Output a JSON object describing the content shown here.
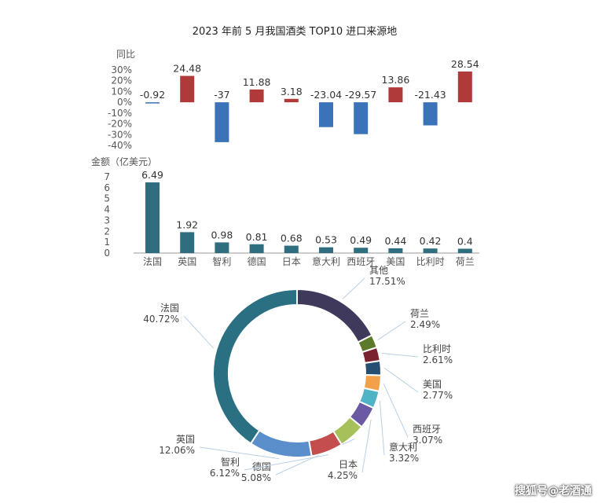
{
  "watermark": "搜狐号@老酒通",
  "chart_data": [
    {
      "type": "bar",
      "title": "2023 年前 5 月我国酒类 TOP10 进口来源地",
      "ylabel": "同比",
      "ylim": [
        -40,
        30
      ],
      "yticks": [
        "30%",
        "20%",
        "10%",
        "0%",
        "-10%",
        "-20%",
        "-30%",
        "-40%"
      ],
      "categories": [
        "法国",
        "英国",
        "智利",
        "德国",
        "日本",
        "意大利",
        "西班牙",
        "美国",
        "比利时",
        "荷兰"
      ],
      "values": [
        -0.92,
        24.48,
        -37,
        11.88,
        3.18,
        -23.04,
        -29.57,
        13.86,
        -21.43,
        28.54
      ],
      "value_labels": [
        "-0.92",
        "24.48",
        "-37",
        "11.88",
        "3.18",
        "-23.04",
        "-29.57",
        "13.86",
        "-21.43",
        "28.54"
      ],
      "colors": {
        "positive": "#b03a3a",
        "negative": "#3b73b9"
      }
    },
    {
      "type": "bar",
      "ylabel": "金额（亿美元）",
      "ylim": [
        0,
        7
      ],
      "yticks": [
        "7",
        "6",
        "5",
        "4",
        "3",
        "2",
        "1",
        "0"
      ],
      "categories": [
        "法国",
        "英国",
        "智利",
        "德国",
        "日本",
        "意大利",
        "西班牙",
        "美国",
        "比利时",
        "荷兰"
      ],
      "values": [
        6.49,
        1.92,
        0.98,
        0.81,
        0.68,
        0.53,
        0.49,
        0.44,
        0.42,
        0.4
      ],
      "value_labels": [
        "6.49",
        "1.92",
        "0.98",
        "0.81",
        "0.68",
        "0.53",
        "0.49",
        "0.44",
        "0.42",
        "0.4"
      ],
      "colors": {
        "bar": "#2e6e7e"
      }
    },
    {
      "type": "pie",
      "slices": [
        {
          "label": "其他",
          "pct": "17.51%",
          "value": 17.51,
          "color": "#3f3a5c"
        },
        {
          "label": "荷兰",
          "pct": "2.49%",
          "value": 2.49,
          "color": "#5c7a2a"
        },
        {
          "label": "比利时",
          "pct": "2.61%",
          "value": 2.61,
          "color": "#7a2230"
        },
        {
          "label": "美国",
          "pct": "2.77%",
          "value": 2.77,
          "color": "#244e72"
        },
        {
          "label": "西班牙",
          "pct": "3.07%",
          "value": 3.07,
          "color": "#f2a04a"
        },
        {
          "label": "意大利",
          "pct": "3.32%",
          "value": 3.32,
          "color": "#4fb4c6"
        },
        {
          "label": "日本",
          "pct": "4.25%",
          "value": 4.25,
          "color": "#6b5aa3"
        },
        {
          "label": "德国",
          "pct": "5.08%",
          "value": 5.08,
          "color": "#a6c05a"
        },
        {
          "label": "智利",
          "pct": "6.12%",
          "value": 6.12,
          "color": "#c44e4e"
        },
        {
          "label": "英国",
          "pct": "12.06%",
          "value": 12.06,
          "color": "#5b8fcb"
        },
        {
          "label": "法国",
          "pct": "40.72%",
          "value": 40.72,
          "color": "#2a6f82"
        }
      ]
    }
  ]
}
